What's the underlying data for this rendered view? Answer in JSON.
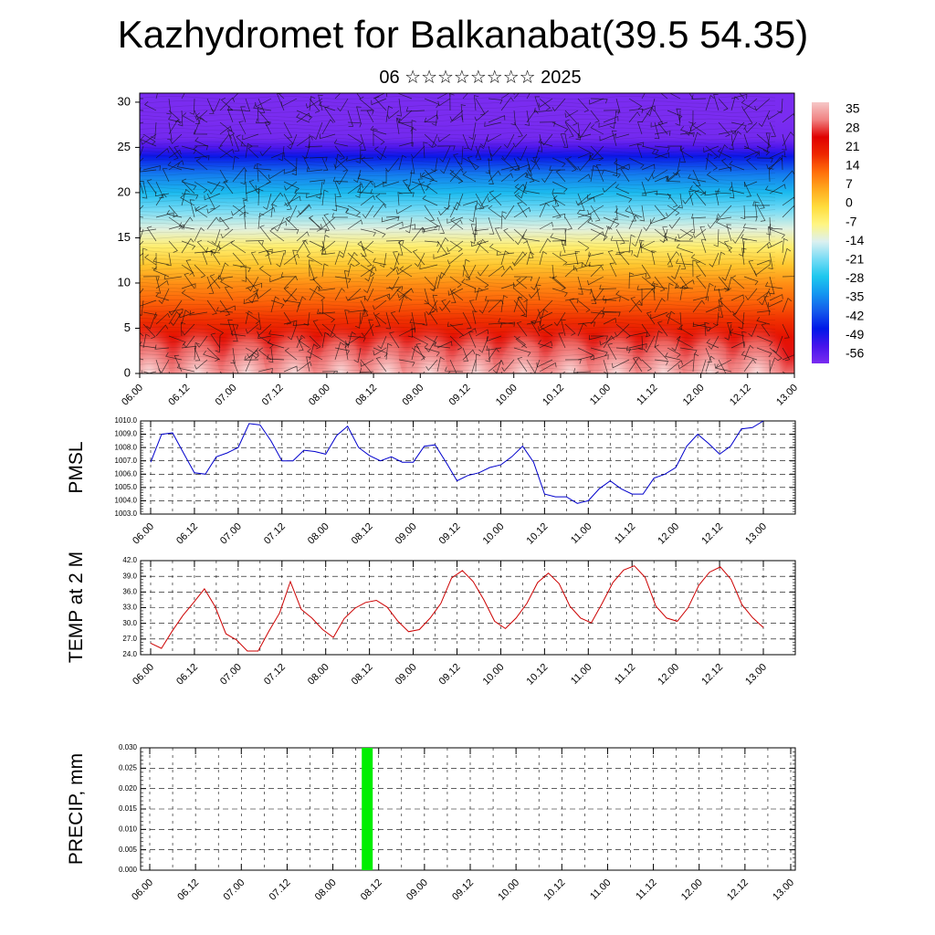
{
  "title": "Kazhydromet for Balkanabat(39.5 54.35)",
  "subtitle": "06 ☆☆☆☆☆☆☆☆ 2025",
  "time_labels": [
    "06.00",
    "06.12",
    "07.00",
    "07.12",
    "08.00",
    "08.12",
    "09.00",
    "09.12",
    "10.00",
    "10.12",
    "11.00",
    "11.12",
    "12.00",
    "12.12",
    "13.00"
  ],
  "chart_data": [
    {
      "type": "heatmap",
      "title": "",
      "xlabel": "",
      "ylabel": "",
      "x_ticks": [
        "06.00",
        "06.12",
        "07.00",
        "07.12",
        "08.00",
        "08.12",
        "09.00",
        "09.12",
        "10.00",
        "10.12",
        "11.00",
        "11.12",
        "12.00",
        "12.12",
        "13.00"
      ],
      "y_ticks": [
        0,
        5,
        10,
        15,
        20,
        25,
        30
      ],
      "ylim": [
        0,
        31
      ],
      "colorbar_labels": [
        "35",
        "28",
        "21",
        "14",
        "7",
        "0",
        "-7",
        "-14",
        "-21",
        "-28",
        "-35",
        "-42",
        "-49",
        "-56"
      ],
      "colorbar_range": [
        -63,
        42
      ],
      "overlay": "wind barbs",
      "temperature_profile": {
        "levels": [
          0,
          2,
          4,
          6,
          8,
          10,
          12,
          14,
          16,
          18,
          20,
          22,
          24,
          25,
          26,
          28,
          31
        ],
        "values": [
          34,
          29,
          25,
          20,
          15,
          10,
          3,
          -5,
          -13,
          -21,
          -30,
          -38,
          -50,
          -57,
          -62,
          -63,
          -63
        ]
      },
      "colors": {
        "warm": "#e00000",
        "hot": "#f6b8b8",
        "yellow": "#fff06a",
        "cyan": "#1ec8ee",
        "blue": "#0018e8",
        "violet": "#7a2cf0"
      }
    },
    {
      "type": "line",
      "ylabel": "PMSL",
      "ylim": [
        1003.0,
        1010.0
      ],
      "y_ticks": [
        "1003.0",
        "1004.0",
        "1005.0",
        "1006.0",
        "1007.0",
        "1008.0",
        "1009.0",
        "1010.0"
      ],
      "x_ticks": [
        "06.00",
        "06.12",
        "07.00",
        "07.12",
        "08.00",
        "08.12",
        "09.00",
        "09.12",
        "10.00",
        "10.12",
        "11.00",
        "11.12",
        "12.00",
        "12.12",
        "13.00"
      ],
      "series": [
        {
          "color": "#0000cc",
          "values": [
            1006.9,
            1009.0,
            1009.1,
            1007.6,
            1006.1,
            1006.0,
            1007.3,
            1007.6,
            1008.0,
            1009.8,
            1009.7,
            1008.5,
            1007.0,
            1007.0,
            1007.8,
            1007.7,
            1007.5,
            1008.9,
            1009.6,
            1008.0,
            1007.4,
            1007.0,
            1007.3,
            1006.9,
            1006.9,
            1008.1,
            1008.2,
            1006.9,
            1005.5,
            1005.9,
            1006.1,
            1006.5,
            1006.7,
            1007.3,
            1008.1,
            1006.9,
            1004.5,
            1004.3,
            1004.3,
            1003.8,
            1004.0,
            1004.9,
            1005.5,
            1004.9,
            1004.5,
            1004.5,
            1005.7,
            1006.0,
            1006.5,
            1008.1,
            1009.0,
            1008.3,
            1007.5,
            1008.1,
            1009.4,
            1009.5,
            1010.0
          ]
        }
      ]
    },
    {
      "type": "line",
      "ylabel": "TEMP at 2 M",
      "ylim": [
        24.0,
        42.0
      ],
      "y_ticks": [
        "24.0",
        "27.0",
        "30.0",
        "33.0",
        "36.0",
        "39.0",
        "42.0"
      ],
      "x_ticks": [
        "06.00",
        "06.12",
        "07.00",
        "07.12",
        "08.00",
        "08.12",
        "09.00",
        "09.12",
        "10.00",
        "10.12",
        "11.00",
        "11.12",
        "12.00",
        "12.12",
        "13.00"
      ],
      "series": [
        {
          "color": "#cc0000",
          "values": [
            26.2,
            25.2,
            28.5,
            31.5,
            34.0,
            36.6,
            33.2,
            28.0,
            26.8,
            24.7,
            24.7,
            28.5,
            32.0,
            38.0,
            32.7,
            31.0,
            28.8,
            27.3,
            30.9,
            32.9,
            34.0,
            34.4,
            33.1,
            30.4,
            28.4,
            28.8,
            31.0,
            33.8,
            38.7,
            40.1,
            38.0,
            34.5,
            30.4,
            29.0,
            31.0,
            33.8,
            37.8,
            39.6,
            37.6,
            33.3,
            31.0,
            30.1,
            33.8,
            37.8,
            40.2,
            41.0,
            38.8,
            33.3,
            31.0,
            30.4,
            33.0,
            37.3,
            39.8,
            40.8,
            38.4,
            33.6,
            31.1,
            29.2
          ]
        }
      ]
    },
    {
      "type": "bar",
      "ylabel": "PRECIP, mm",
      "ylim": [
        0.0,
        0.03
      ],
      "y_ticks": [
        "0.000",
        "0.005",
        "0.010",
        "0.015",
        "0.020",
        "0.025",
        "0.030"
      ],
      "x_ticks": [
        "06.00",
        "06.12",
        "07.00",
        "07.12",
        "08.00",
        "08.12",
        "09.00",
        "09.12",
        "10.00",
        "10.12",
        "11.00",
        "11.12",
        "12.00",
        "12.12",
        "13.00"
      ],
      "bars": [
        {
          "time": "08.09",
          "value": 0.03,
          "color": "#00ee00"
        }
      ]
    }
  ]
}
